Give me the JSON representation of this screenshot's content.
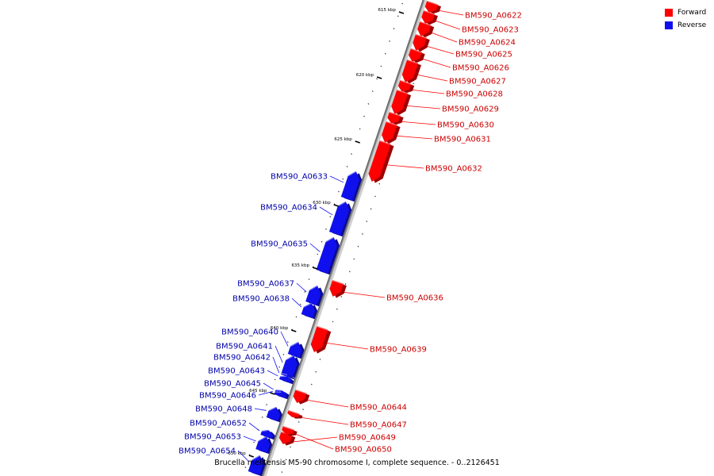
{
  "legend": {
    "forward_label": "Forward",
    "reverse_label": "Reverse",
    "forward_color": "#ff0000",
    "reverse_color": "#1010ee"
  },
  "caption": "Brucella melitensis M5-90 chromosome I, complete sequence. - 0..2126451",
  "axis": {
    "backbone_color": "#888888",
    "ticks": [
      {
        "label": "615 kbp"
      },
      {
        "label": "620 kbp"
      },
      {
        "label": "625 kbp"
      },
      {
        "label": "630 kbp"
      },
      {
        "label": "635 kbp"
      },
      {
        "label": "640 kbp"
      },
      {
        "label": "645 kbp"
      },
      {
        "label": "650 kbp"
      }
    ]
  },
  "genes": [
    {
      "label": "BM590_A0622",
      "strand": "forward"
    },
    {
      "label": "BM590_A0623",
      "strand": "forward"
    },
    {
      "label": "BM590_A0624",
      "strand": "forward"
    },
    {
      "label": "BM590_A0625",
      "strand": "forward"
    },
    {
      "label": "BM590_A0626",
      "strand": "forward"
    },
    {
      "label": "BM590_A0627",
      "strand": "forward"
    },
    {
      "label": "BM590_A0628",
      "strand": "forward"
    },
    {
      "label": "BM590_A0629",
      "strand": "forward"
    },
    {
      "label": "BM590_A0630",
      "strand": "forward"
    },
    {
      "label": "BM590_A0631",
      "strand": "forward"
    },
    {
      "label": "BM590_A0632",
      "strand": "forward"
    },
    {
      "label": "BM590_A0633",
      "strand": "reverse"
    },
    {
      "label": "BM590_A0634",
      "strand": "reverse"
    },
    {
      "label": "BM590_A0635",
      "strand": "reverse"
    },
    {
      "label": "BM590_A0636",
      "strand": "forward"
    },
    {
      "label": "BM590_A0637",
      "strand": "reverse"
    },
    {
      "label": "BM590_A0638",
      "strand": "reverse"
    },
    {
      "label": "BM590_A0639",
      "strand": "forward"
    },
    {
      "label": "BM590_A0640",
      "strand": "reverse"
    },
    {
      "label": "BM590_A0641",
      "strand": "reverse"
    },
    {
      "label": "BM590_A0642",
      "strand": "reverse"
    },
    {
      "label": "BM590_A0643",
      "strand": "reverse"
    },
    {
      "label": "BM590_A0644",
      "strand": "forward"
    },
    {
      "label": "BM590_A0645",
      "strand": "reverse"
    },
    {
      "label": "BM590_A0646",
      "strand": "reverse"
    },
    {
      "label": "BM590_A0647",
      "strand": "forward"
    },
    {
      "label": "BM590_A0648",
      "strand": "reverse"
    },
    {
      "label": "BM590_A0649",
      "strand": "forward"
    },
    {
      "label": "BM590_A0650",
      "strand": "forward"
    },
    {
      "label": "BM590_A0652",
      "strand": "reverse"
    },
    {
      "label": "BM590_A0653",
      "strand": "reverse"
    },
    {
      "label": "BM590_A0654",
      "strand": "reverse"
    }
  ]
}
